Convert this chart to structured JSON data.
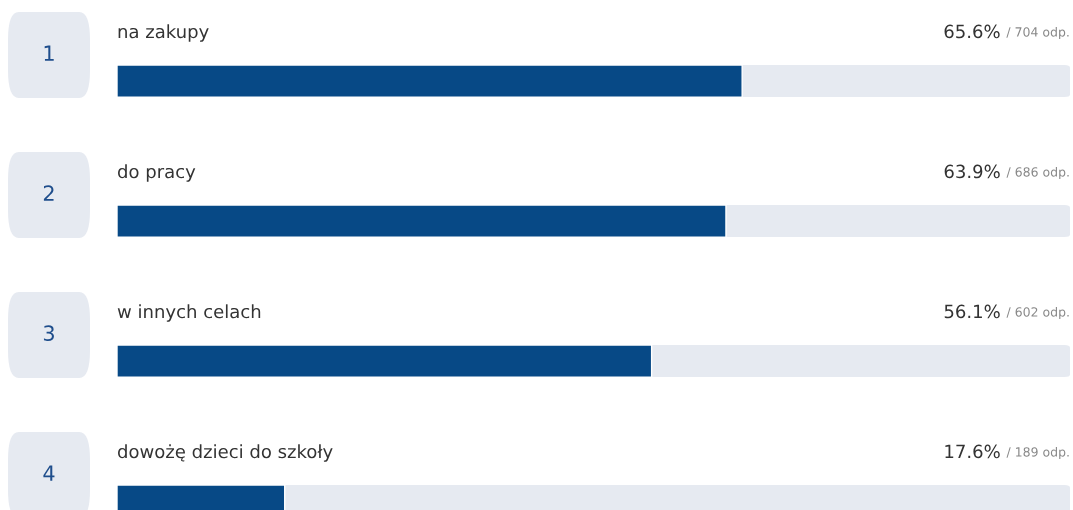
{
  "chart_data": {
    "type": "bar",
    "orientation": "horizontal",
    "categories": [
      "na zakupy",
      "do pracy",
      "w innych celach",
      "dowożę dzieci do szkoły"
    ],
    "values": [
      65.6,
      63.9,
      56.1,
      17.6
    ],
    "color": "#074986",
    "value_labels": [
      "65.6% / 704 odp.",
      "63.9% / 686 odp.",
      "56.1% / 602 odp.",
      "17.6% / 189 odp."
    ],
    "xlim": [
      0,
      100
    ],
    "tick_labels": false,
    "annotations": [
      "1",
      "2",
      "3",
      "4"
    ]
  }
}
